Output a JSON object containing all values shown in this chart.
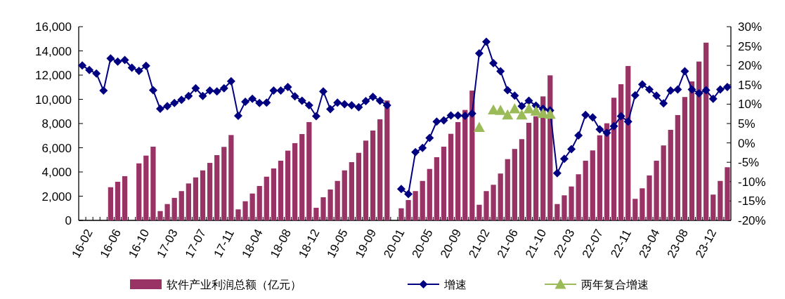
{
  "chart_data": {
    "type": "bar",
    "legend": "bottom",
    "categories": [
      "16-02",
      null,
      null,
      null,
      "16-06",
      null,
      null,
      null,
      "16-10",
      null,
      null,
      null,
      "17-03",
      null,
      null,
      null,
      "17-07",
      null,
      null,
      null,
      "17-11",
      null,
      null,
      null,
      "18-04",
      null,
      null,
      null,
      "18-08",
      null,
      null,
      null,
      "18-12",
      null,
      null,
      null,
      "19-05",
      null,
      null,
      null,
      "19-09",
      null,
      null,
      null,
      "20-01",
      null,
      null,
      null,
      "20-05",
      null,
      null,
      null,
      "20-09",
      null,
      null,
      null,
      "21-02",
      null,
      null,
      null,
      "21-06",
      null,
      null,
      null,
      "21-10",
      null,
      null,
      null,
      "22-03",
      null,
      null,
      null,
      "22-07",
      null,
      null,
      null,
      "22-11",
      null,
      null,
      null,
      "23-04",
      null,
      null,
      null,
      "23-08",
      null,
      null,
      null,
      "23-12",
      null,
      null,
      null
    ],
    "ylim": [
      0,
      16000
    ],
    "yticks": [
      0,
      {
        "value": 2000,
        "label": "2,000"
      },
      {
        "value": 4000,
        "label": "4,000"
      },
      {
        "value": 6000,
        "label": "6,000"
      },
      {
        "value": 8000,
        "label": "8,000"
      },
      {
        "value": 10000,
        "label": "10,000"
      },
      {
        "value": 12000,
        "label": "12,000"
      },
      {
        "value": 14000,
        "label": "14,000"
      },
      {
        "value": 16000,
        "label": "16,000"
      }
    ],
    "y2lim": [
      -20,
      30
    ],
    "y2ticks": [
      {
        "value": -20,
        "label": "-20%"
      },
      {
        "value": -15,
        "label": "-15%"
      },
      {
        "value": -10,
        "label": "-10%"
      },
      {
        "value": -5,
        "label": "-5%"
      },
      {
        "value": 0,
        "label": "0%"
      },
      {
        "value": 5,
        "label": "5%"
      },
      {
        "value": 10,
        "label": "10%"
      },
      {
        "value": 15,
        "label": "15%"
      },
      {
        "value": 20,
        "label": "20%"
      },
      {
        "value": 25,
        "label": "25%"
      },
      {
        "value": 30,
        "label": "30%"
      }
    ],
    "series": [
      {
        "name": "软件产业利润总额（亿元）",
        "color": "#993366",
        "values": [
          null,
          null,
          null,
          null,
          2740,
          3190,
          3650,
          null,
          4710,
          5350,
          6090,
          770,
          1350,
          1860,
          2420,
          3050,
          3550,
          4130,
          4750,
          5390,
          6070,
          7050,
          910,
          1580,
          2220,
          2840,
          3610,
          4290,
          4930,
          5760,
          6380,
          7130,
          8120,
          1040,
          1910,
          2550,
          3260,
          4130,
          4810,
          5580,
          6590,
          7420,
          8350,
          9900,
          null,
          1000,
          1680,
          2420,
          3260,
          4250,
          5220,
          6090,
          7150,
          8120,
          9120,
          10720,
          1290,
          2420,
          2940,
          3870,
          5060,
          5900,
          6710,
          8060,
          8600,
          10240,
          11980,
          1350,
          2070,
          2800,
          3810,
          4930,
          5780,
          7030,
          8020,
          10130,
          11250,
          12750,
          1780,
          2650,
          3710,
          4930,
          6190,
          7480,
          8700,
          10190,
          11480,
          13120,
          14680,
          2130,
          3260,
          4390
        ]
      },
      {
        "name": "增速",
        "type": "line",
        "axis": "y2",
        "marker": "diamond",
        "color": "#000080",
        "values": [
          20.0,
          18.8,
          17.9,
          13.5,
          21.8,
          21.0,
          21.4,
          19.4,
          18.6,
          19.9,
          13.6,
          8.8,
          9.5,
          10.3,
          11.1,
          12.1,
          14.1,
          12.1,
          13.5,
          13.3,
          14.1,
          15.9,
          7.0,
          10.6,
          11.4,
          10.3,
          10.4,
          13.5,
          13.5,
          14.4,
          12.0,
          10.9,
          9.7,
          6.9,
          13.3,
          8.7,
          10.4,
          10.0,
          9.7,
          9.2,
          10.8,
          11.9,
          10.9,
          9.7,
          null,
          -11.9,
          -13.2,
          -2.4,
          -1.3,
          1.3,
          5.5,
          5.8,
          7.1,
          7.1,
          7.0,
          7.6,
          23.1,
          26.1,
          20.6,
          18.5,
          13.6,
          12.2,
          9.5,
          10.9,
          9.6,
          8.8,
          8.4,
          -7.8,
          -4.1,
          -1.6,
          1.9,
          7.2,
          6.6,
          3.5,
          2.6,
          4.3,
          6.9,
          5.5,
          12.3,
          15.1,
          13.8,
          12.2,
          10.2,
          13.5,
          13.8,
          18.5,
          13.8,
          12.8,
          13.6,
          11.4,
          13.8,
          14.4
        ]
      },
      {
        "name": "两年复合增速",
        "type": "scatter",
        "axis": "y2",
        "marker": "triangle",
        "color": "#9bbb59",
        "values": [
          null,
          null,
          null,
          null,
          null,
          null,
          null,
          null,
          null,
          null,
          null,
          null,
          null,
          null,
          null,
          null,
          null,
          null,
          null,
          null,
          null,
          null,
          null,
          null,
          null,
          null,
          null,
          null,
          null,
          null,
          null,
          null,
          null,
          null,
          null,
          null,
          null,
          null,
          null,
          null,
          null,
          null,
          null,
          null,
          null,
          null,
          null,
          null,
          null,
          null,
          null,
          null,
          null,
          null,
          null,
          null,
          4.0,
          null,
          8.5,
          8.4,
          7.2,
          8.8,
          7.2,
          8.8,
          8.2,
          7.6,
          7.4,
          null,
          null,
          null,
          null,
          null,
          null,
          null,
          null,
          null,
          null,
          null,
          null,
          null,
          null,
          null,
          null,
          null,
          null,
          null,
          null,
          null,
          null,
          null,
          null,
          null
        ]
      }
    ]
  }
}
